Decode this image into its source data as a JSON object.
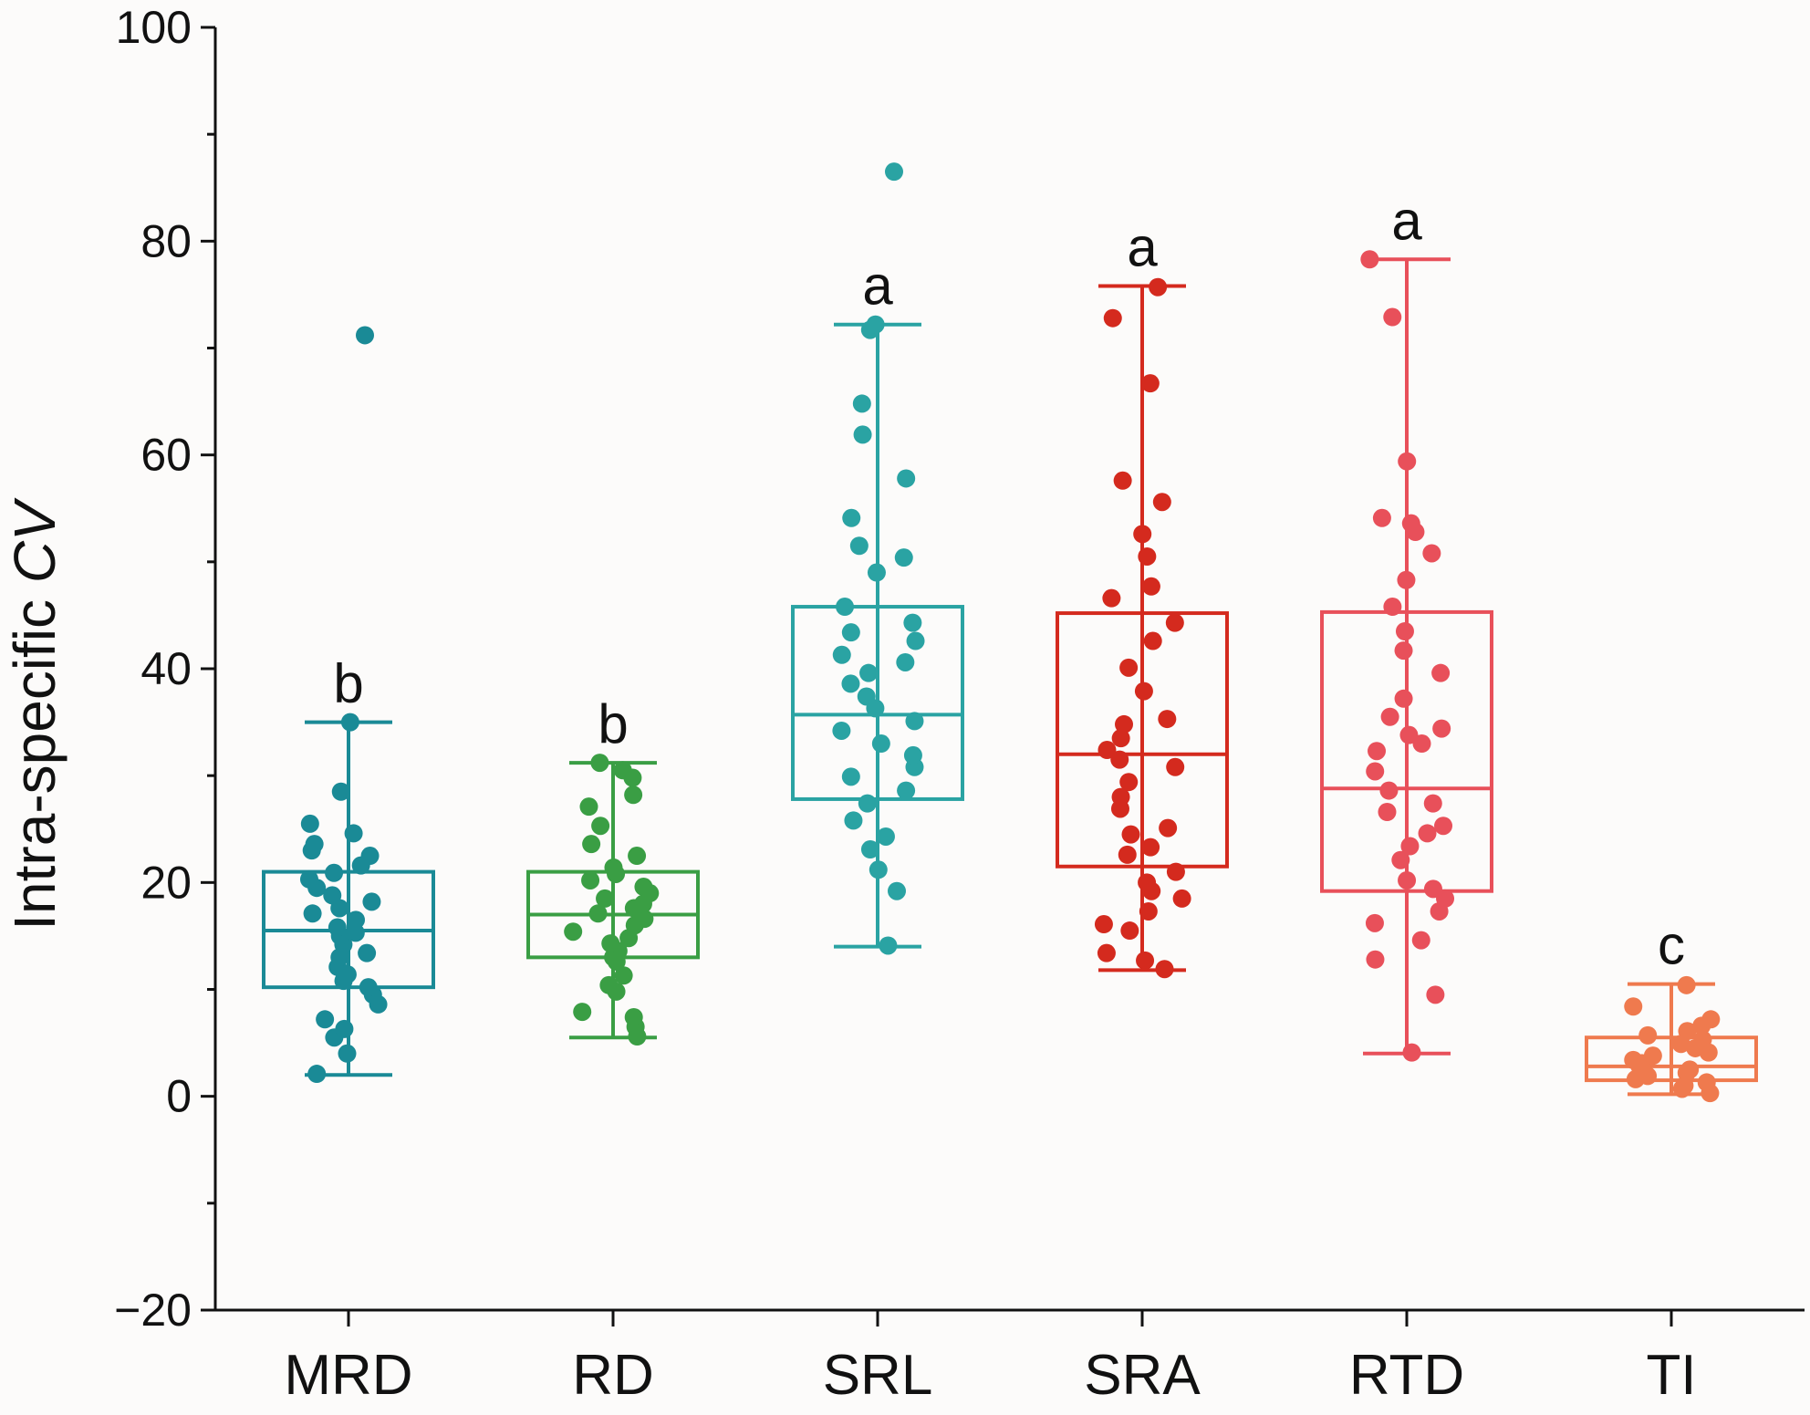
{
  "chart_data": {
    "type": "box",
    "ylabel": "Intra-specific CV",
    "ylim": [
      -20,
      100
    ],
    "yticks": [
      -20,
      0,
      20,
      40,
      60,
      80,
      100
    ],
    "grid": false,
    "categories": [
      "MRD",
      "RD",
      "SRL",
      "SRA",
      "RTD",
      "TI"
    ],
    "boxes": [
      {
        "category": "MRD",
        "color": "#1a8a96",
        "q1": 10.2,
        "median": 15.5,
        "q3": 21.0,
        "whisker_low": 2.0,
        "whisker_high": 35.0,
        "outliers": [
          71.2
        ],
        "letter": "b",
        "points": [
          2.1,
          4.0,
          5.5,
          6.3,
          7.2,
          8.6,
          9.5,
          10.2,
          10.8,
          11.4,
          12.1,
          13.0,
          13.4,
          14.2,
          15.0,
          15.3,
          15.8,
          16.5,
          17.1,
          17.6,
          18.2,
          18.8,
          19.5,
          20.3,
          20.9,
          21.6,
          22.5,
          23.0,
          23.6,
          24.6,
          25.5,
          28.5,
          35.0
        ]
      },
      {
        "category": "RD",
        "color": "#3a9e44",
        "q1": 13.0,
        "median": 17.0,
        "q3": 21.0,
        "whisker_low": 5.5,
        "whisker_high": 31.2,
        "outliers": [],
        "letter": "b",
        "points": [
          5.6,
          6.5,
          7.4,
          7.9,
          9.8,
          10.4,
          11.3,
          12.6,
          13.0,
          13.6,
          14.3,
          14.8,
          15.4,
          16.0,
          16.6,
          17.1,
          17.6,
          18.0,
          18.5,
          19.0,
          19.6,
          20.2,
          20.8,
          21.4,
          22.5,
          23.6,
          25.3,
          27.1,
          28.2,
          29.8,
          30.5,
          31.2
        ]
      },
      {
        "category": "SRL",
        "color": "#2aa3a3",
        "q1": 27.8,
        "median": 35.7,
        "q3": 45.8,
        "whisker_low": 14.0,
        "whisker_high": 72.2,
        "outliers": [
          86.5
        ],
        "letter": "a",
        "points": [
          14.1,
          19.2,
          21.2,
          23.1,
          24.3,
          25.8,
          27.4,
          28.6,
          29.9,
          30.8,
          31.9,
          33.0,
          34.2,
          35.1,
          36.3,
          37.4,
          38.6,
          39.6,
          40.6,
          41.3,
          42.6,
          43.4,
          44.3,
          45.8,
          49.0,
          50.4,
          51.5,
          54.1,
          57.8,
          61.9,
          64.8,
          71.7,
          72.2
        ]
      },
      {
        "category": "SRA",
        "color": "#d42a1e",
        "q1": 21.5,
        "median": 32.0,
        "q3": 45.2,
        "whisker_low": 11.8,
        "whisker_high": 75.8,
        "outliers": [],
        "letter": "a",
        "points": [
          11.9,
          12.7,
          13.4,
          15.5,
          16.1,
          17.3,
          18.5,
          19.2,
          20.0,
          21.0,
          22.6,
          23.3,
          24.5,
          25.1,
          26.9,
          28.0,
          29.4,
          30.8,
          31.5,
          32.4,
          33.5,
          34.8,
          35.3,
          37.9,
          40.1,
          42.6,
          44.3,
          46.6,
          47.7,
          50.5,
          52.6,
          55.6,
          57.6,
          66.7,
          72.8,
          75.7
        ]
      },
      {
        "category": "RTD",
        "color": "#e8505a",
        "q1": 19.2,
        "median": 28.8,
        "q3": 45.3,
        "whisker_low": 4.0,
        "whisker_high": 78.3,
        "outliers": [],
        "letter": "a",
        "points": [
          4.1,
          9.5,
          12.8,
          14.6,
          16.2,
          17.3,
          18.5,
          19.4,
          20.2,
          22.1,
          23.4,
          24.6,
          25.3,
          26.6,
          27.4,
          28.6,
          30.4,
          32.3,
          33.0,
          33.8,
          34.4,
          35.5,
          37.2,
          39.6,
          41.7,
          43.5,
          45.8,
          48.3,
          50.8,
          52.8,
          53.6,
          54.1,
          59.4,
          72.9,
          78.3
        ]
      },
      {
        "category": "TI",
        "color": "#ef7a4e",
        "q1": 1.5,
        "median": 2.8,
        "q3": 5.5,
        "whisker_low": 0.2,
        "whisker_high": 10.5,
        "outliers": [],
        "letter": "c",
        "points": [
          0.3,
          0.7,
          1.0,
          1.3,
          1.6,
          1.9,
          2.2,
          2.5,
          2.8,
          3.1,
          3.4,
          3.8,
          4.1,
          4.5,
          4.9,
          5.3,
          5.7,
          6.1,
          6.6,
          7.2,
          8.4,
          10.4
        ]
      }
    ]
  }
}
